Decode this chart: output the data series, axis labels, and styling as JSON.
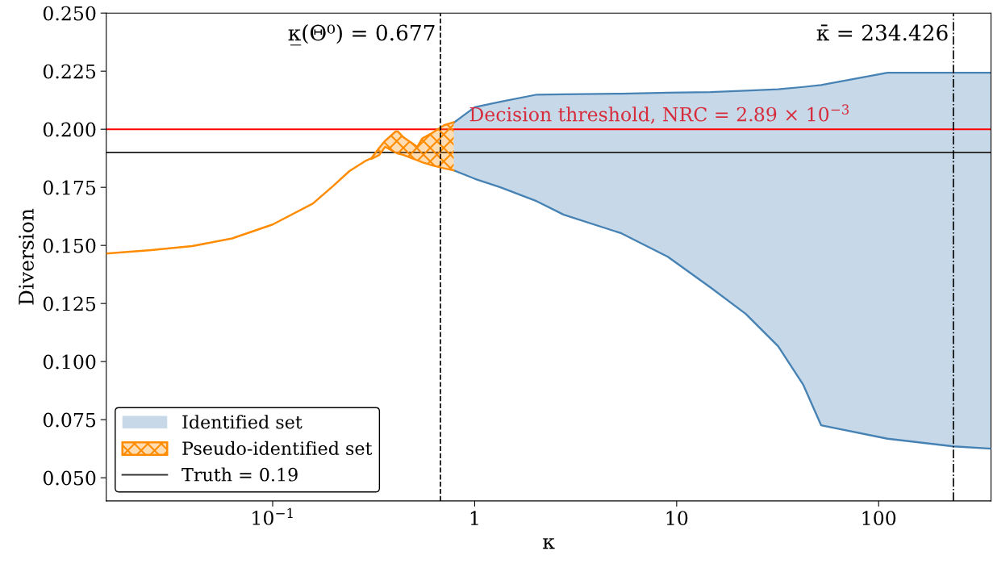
{
  "chart_data": {
    "type": "line",
    "xlabel": "κ",
    "ylabel": "Diversion",
    "log": "x",
    "xlim": [
      0.015,
      360
    ],
    "ylim": [
      0.04,
      0.25
    ],
    "xticks": [
      {
        "value": 0.1,
        "label": "10$^{−1}$"
      },
      1,
      10,
      100
    ],
    "yticks": [
      {
        "value": 0.05,
        "label": "0.050"
      },
      {
        "value": 0.075,
        "label": "0.075"
      },
      {
        "value": 0.1,
        "label": "0.100"
      },
      {
        "value": 0.125,
        "label": "0.125"
      },
      {
        "value": 0.15,
        "label": "0.150"
      },
      {
        "value": 0.175,
        "label": "0.175"
      },
      {
        "value": 0.2,
        "label": "0.200"
      },
      {
        "value": 0.225,
        "label": "0.225"
      },
      {
        "value": 0.25,
        "label": "0.250"
      }
    ],
    "annotations": [
      "Decision threshold, NRC = 2.89 × 10$^{−3}$"
    ],
    "grid": false,
    "legend": "bottom left",
    "series": [
      {
        "name": "Identified set",
        "color": "#4682b4",
        "x": [
          0.787,
          1.0,
          1.34,
          2.03,
          2.76,
          5.33,
          9.04,
          14.7,
          22.0,
          31.8,
          42.4,
          51.9,
          110.6,
          234.4,
          360
        ],
        "values": [
          0.2028,
          0.2095,
          0.2118,
          0.2149,
          0.215,
          0.2153,
          0.2157,
          0.216,
          0.2166,
          0.2172,
          0.2182,
          0.219,
          0.2243,
          0.2243,
          0.2243
        ],
        "upper": [
          0.2028,
          0.2095,
          0.2118,
          0.2149,
          0.215,
          0.2153,
          0.2157,
          0.216,
          0.2166,
          0.2172,
          0.2182,
          0.219,
          0.2243,
          0.2243,
          0.2243
        ],
        "lower": [
          0.1823,
          0.1787,
          0.175,
          0.169,
          0.1632,
          0.1552,
          0.1451,
          0.1319,
          0.1205,
          0.1066,
          0.0899,
          0.0726,
          0.0668,
          0.0635,
          0.0625
        ]
      },
      {
        "color": "#4682b4",
        "x": [
          0.787,
          1.0,
          1.34,
          2.03,
          2.76,
          5.33,
          9.04,
          14.7,
          22.0,
          31.8,
          42.4,
          51.9,
          110.6,
          234.4,
          360
        ],
        "values": [
          0.1823,
          0.1787,
          0.175,
          0.169,
          0.1632,
          0.1552,
          0.1451,
          0.1319,
          0.1205,
          0.1066,
          0.0899,
          0.0726,
          0.0668,
          0.0635,
          0.0625
        ]
      },
      {
        "name": "Pseudo-identified set",
        "color": "#ff8c00",
        "x": [
          0.015,
          0.025,
          0.04,
          0.063,
          0.1,
          0.158,
          0.2,
          0.24,
          0.29,
          0.308,
          0.337,
          0.36,
          0.406,
          0.417,
          0.445,
          0.52,
          0.55,
          0.614,
          0.705,
          0.787
        ],
        "values": [
          0.1465,
          0.148,
          0.1497,
          0.153,
          0.159,
          0.168,
          0.1757,
          0.182,
          0.1865,
          0.1875,
          0.192,
          0.195,
          0.199,
          0.199,
          0.1965,
          0.1924,
          0.196,
          0.1983,
          0.2017,
          0.203
        ],
        "upper": [
          0.1465,
          0.148,
          0.1497,
          0.153,
          0.159,
          0.168,
          0.1757,
          0.182,
          0.1865,
          0.1875,
          0.192,
          0.195,
          0.199,
          0.199,
          0.1965,
          0.1924,
          0.196,
          0.1983,
          0.2017,
          0.203
        ],
        "lower": [
          0.1465,
          0.148,
          0.1497,
          0.153,
          0.159,
          0.168,
          0.1757,
          0.182,
          0.1865,
          0.1872,
          0.1889,
          0.1924,
          0.19,
          0.1895,
          0.1889,
          0.1866,
          0.1858,
          0.1845,
          0.1832,
          0.1823
        ]
      },
      {
        "color": "#ff8c00",
        "x": [
          0.308,
          0.337,
          0.36,
          0.406,
          0.417,
          0.445,
          0.52,
          0.55,
          0.614,
          0.705,
          0.787
        ],
        "values": [
          0.1872,
          0.1889,
          0.1924,
          0.19,
          0.1895,
          0.1889,
          0.1866,
          0.1858,
          0.1845,
          0.1832,
          0.1823
        ]
      },
      {
        "name": "Truth = 0.19",
        "color": "#333333",
        "x": [
          0.015,
          360
        ],
        "values": [
          0.19,
          0.19
        ]
      }
    ],
    "ref_lines": [
      {
        "axis": "y",
        "value": 0.2,
        "color": "#ff0000",
        "line_style": "solid"
      },
      {
        "axis": "x",
        "value": 0.677,
        "label": "κ̲(Θ⁰) = 0.677",
        "color": "#000000",
        "line_style": "dashed"
      },
      {
        "axis": "x",
        "value": 234.426,
        "label": "κ̄ = 234.426",
        "color": "#000000",
        "line_style": "dashdot"
      }
    ]
  }
}
